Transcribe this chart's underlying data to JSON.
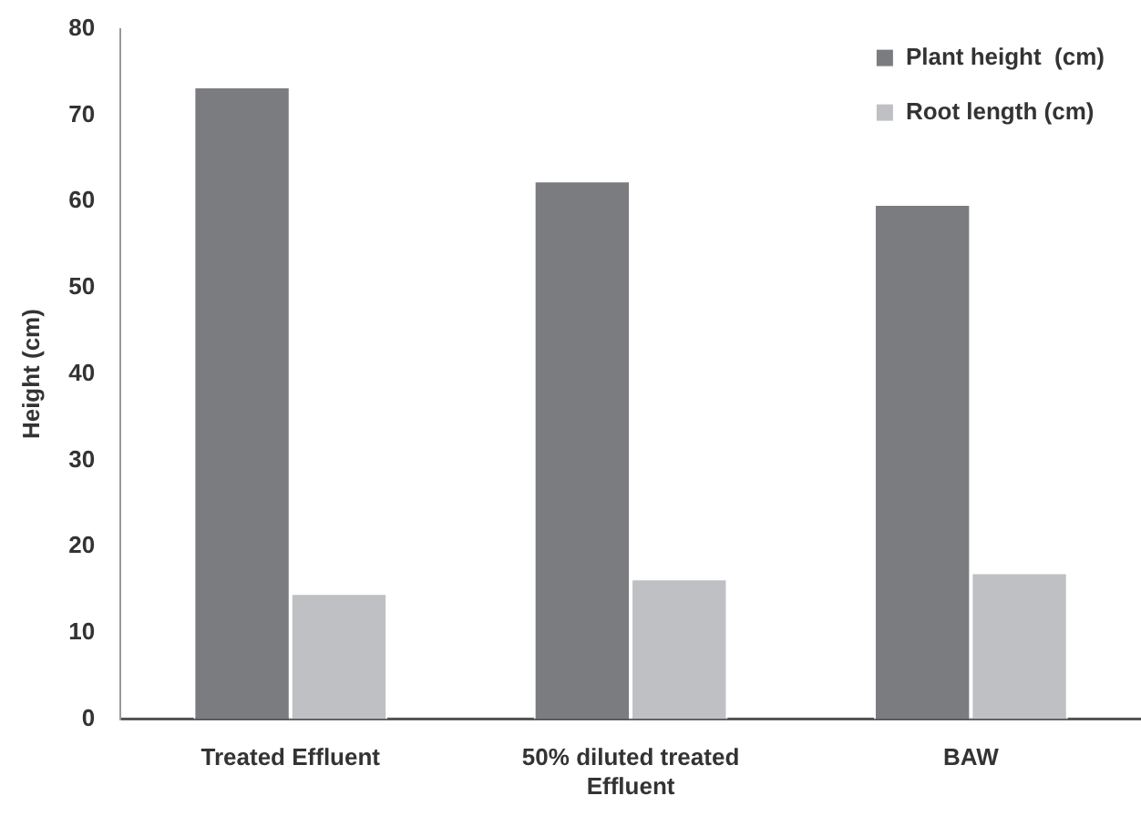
{
  "chart_data": {
    "type": "bar",
    "ylabel": "Height (cm)",
    "categories": [
      "Treated Effluent",
      "50% diluted treated Effluent",
      "BAW"
    ],
    "series": [
      {
        "name": "Plant height  (cm)",
        "color": "#7b7c80",
        "values": [
          73.3,
          62.4,
          59.7
        ]
      },
      {
        "name": "Root length (cm)",
        "color": "#bfc0c4",
        "values": [
          14.6,
          16.3,
          17.0
        ]
      }
    ],
    "ylim": [
      0,
      80
    ],
    "yticks": [
      0,
      10,
      20,
      30,
      40,
      50,
      60,
      70,
      80
    ],
    "grid": false,
    "legend": "top right"
  }
}
